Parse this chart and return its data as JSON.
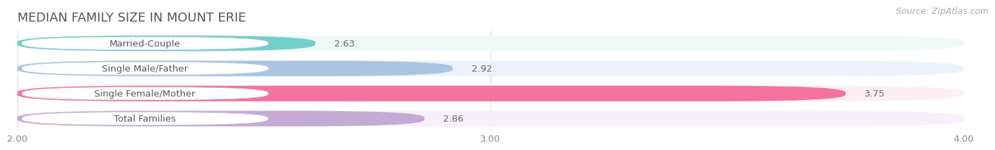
{
  "title": "MEDIAN FAMILY SIZE IN MOUNT ERIE",
  "source": "Source: ZipAtlas.com",
  "categories": [
    "Married-Couple",
    "Single Male/Father",
    "Single Female/Mother",
    "Total Families"
  ],
  "values": [
    2.63,
    2.92,
    3.75,
    2.86
  ],
  "bar_colors": [
    "#72cec9",
    "#aac5e2",
    "#f472a0",
    "#c4aad4"
  ],
  "bar_bg_colors": [
    "#eff9f8",
    "#edf2fa",
    "#fdeef6",
    "#f5f0fa"
  ],
  "x_min": 2.0,
  "x_max": 4.0,
  "x_ticks": [
    2.0,
    3.0,
    4.0
  ],
  "x_tick_labels": [
    "2.00",
    "3.00",
    "4.00"
  ],
  "title_fontsize": 13,
  "source_fontsize": 9,
  "label_fontsize": 9.5,
  "value_fontsize": 9.5,
  "background_color": "#ffffff",
  "bar_height": 0.62,
  "grid_color": "#dddddd",
  "label_box_color": "#ffffff",
  "label_text_color": "#555555",
  "value_text_color": "#666666",
  "title_color": "#555555",
  "source_color": "#aaaaaa"
}
